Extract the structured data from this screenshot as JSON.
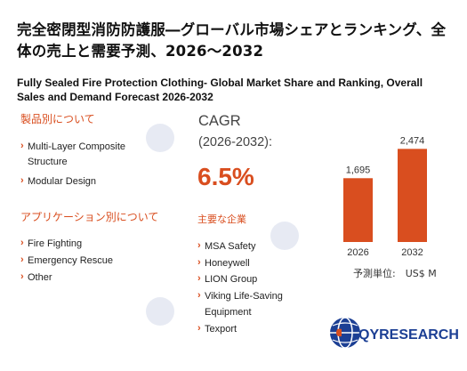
{
  "title_jp": "完全密閉型消防防護服―グローバル市場シェアとランキング、全体の売上と需要予測、2026～2032",
  "title_en": "Fully Sealed Fire Protection Clothing- Global Market Share and Ranking, Overall Sales and Demand Forecast 2026-2032",
  "product_section": {
    "heading": "製品別について",
    "items": [
      "Multi-Layer Composite Structure",
      "Modular Design"
    ]
  },
  "application_section": {
    "heading": "アプリケーション別について",
    "items": [
      "Fire Fighting",
      "Emergency Rescue",
      "Other"
    ]
  },
  "cagr": {
    "label": "CAGR",
    "period": "(2026-2032):",
    "value": "6.5%"
  },
  "companies": {
    "heading": "主要な企業",
    "items": [
      "MSA Safety",
      "Honeywell",
      "LION Group",
      "Viking Life-Saving Equipment",
      "Texport"
    ]
  },
  "unit_label": "予測単位:　US$ M",
  "logo": {
    "text": "QYRESEARCH",
    "watermark_text": "QYRESEARCH"
  },
  "colors": {
    "accent": "#d94e1f",
    "bar": "#d94e1f",
    "brand_blue": "#1c3f94"
  },
  "chart_data": {
    "type": "bar",
    "categories": [
      "2026",
      "2032"
    ],
    "values": [
      1695,
      2474
    ],
    "value_labels": [
      "1,695",
      "2,474"
    ],
    "title": "",
    "xlabel": "",
    "ylabel": "",
    "ylim": [
      0,
      2600
    ],
    "grid": false
  }
}
